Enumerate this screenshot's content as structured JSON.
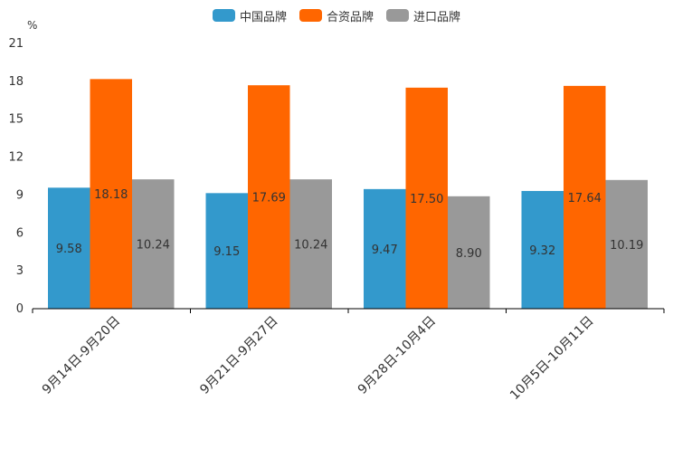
{
  "chart_data": {
    "type": "bar",
    "unit_label": "%",
    "categories": [
      "9月14日-9月20日",
      "9月21日-9月27日",
      "9月28日-10月4日",
      "10月5日-10月11日"
    ],
    "series": [
      {
        "name": "中国品牌",
        "color": "#3399cc",
        "values": [
          9.58,
          9.15,
          9.47,
          9.32
        ],
        "labels": [
          "9.58",
          "9.15",
          "9.47",
          "9.32"
        ]
      },
      {
        "name": "合资品牌",
        "color": "#ff6600",
        "values": [
          18.18,
          17.69,
          17.5,
          17.64
        ],
        "labels": [
          "18.18",
          "17.69",
          "17.50",
          "17.64"
        ]
      },
      {
        "name": "进口品牌",
        "color": "#999999",
        "values": [
          10.24,
          10.24,
          8.9,
          10.19
        ],
        "labels": [
          "10.24",
          "10.24",
          "8.90",
          "10.19"
        ]
      }
    ],
    "ylim": [
      0,
      21
    ],
    "yticks": [
      0,
      3,
      6,
      9,
      12,
      15,
      18,
      21
    ],
    "legend_position": "top-center",
    "xlabel": "",
    "ylabel": "%"
  }
}
